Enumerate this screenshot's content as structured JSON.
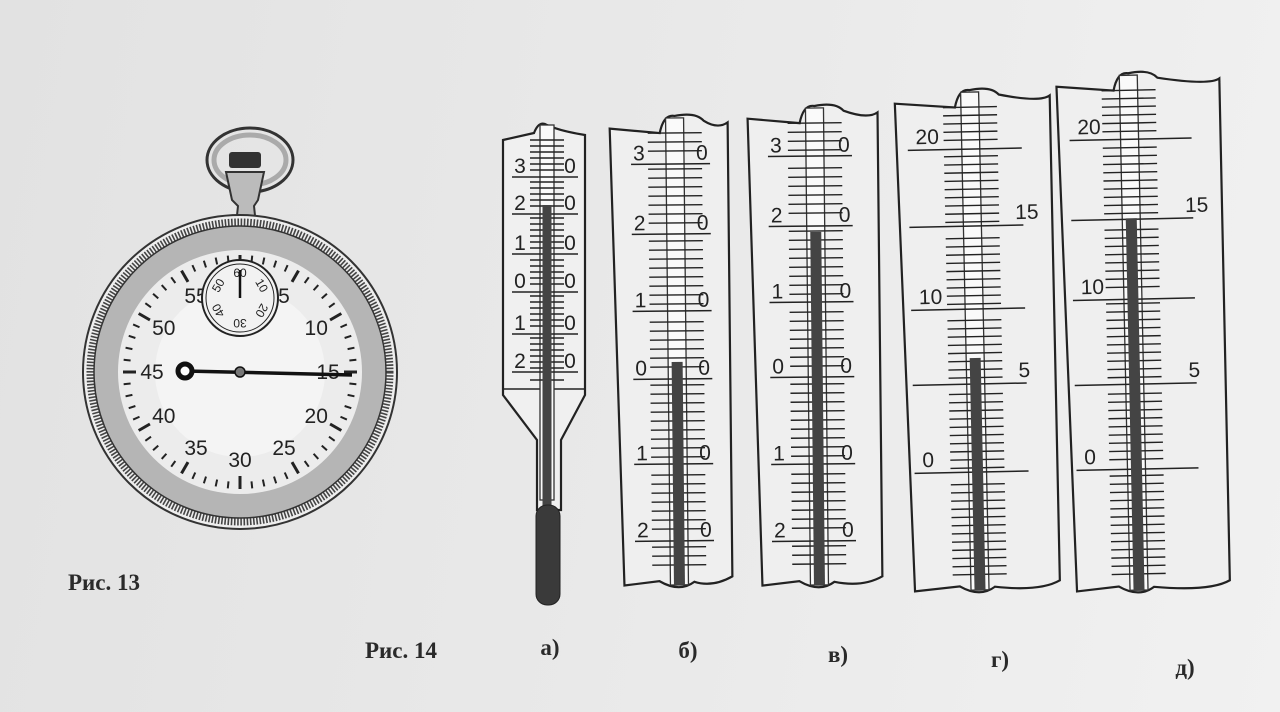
{
  "figure13": {
    "caption": "Рис. 13",
    "stopwatch": {
      "dial_labels": [
        "5",
        "10",
        "15",
        "20",
        "25",
        "30",
        "35",
        "40",
        "45",
        "50",
        "55"
      ],
      "subdial_labels": [
        "60",
        "10",
        "20",
        "30",
        "40",
        "50"
      ],
      "main_hand_reading_seconds": 15,
      "subdial_hand_reading": 60
    }
  },
  "figure14": {
    "caption": "Рис. 14",
    "thermometers": [
      {
        "label": "а)",
        "scale": [
          {
            "l": "3",
            "r": "0"
          },
          {
            "l": "2",
            "r": "0"
          },
          {
            "l": "1",
            "r": "0"
          },
          {
            "l": "0",
            "r": "0"
          },
          {
            "l": "1",
            "r": "0"
          },
          {
            "l": "2",
            "r": "0"
          }
        ]
      },
      {
        "label": "б)",
        "scale": [
          {
            "l": "3",
            "r": "0"
          },
          {
            "l": "2",
            "r": "0"
          },
          {
            "l": "1",
            "r": "0"
          },
          {
            "l": "0",
            "r": "0"
          },
          {
            "l": "1",
            "r": "0"
          },
          {
            "l": "2",
            "r": "0"
          }
        ]
      },
      {
        "label": "в)",
        "scale": [
          {
            "l": "3",
            "r": "0"
          },
          {
            "l": "2",
            "r": "0"
          },
          {
            "l": "1",
            "r": "0"
          },
          {
            "l": "0",
            "r": "0"
          },
          {
            "l": "1",
            "r": "0"
          },
          {
            "l": "2",
            "r": "0"
          }
        ]
      },
      {
        "label": "г)",
        "scale_left": [
          "20",
          "10",
          "0"
        ],
        "scale_right": [
          "15",
          "5"
        ]
      },
      {
        "label": "д)",
        "scale_left": [
          "20",
          "10",
          "0"
        ],
        "scale_right": [
          "15",
          "5"
        ]
      }
    ]
  }
}
